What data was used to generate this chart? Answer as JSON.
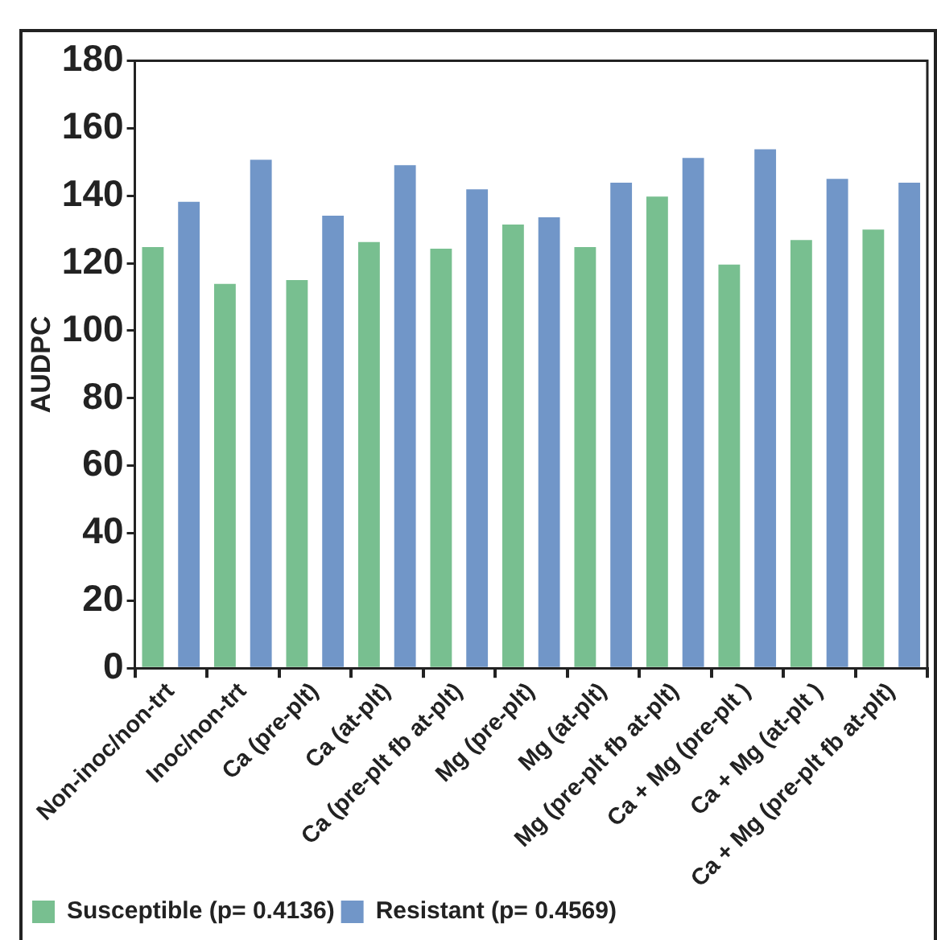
{
  "chart_data": {
    "type": "bar",
    "ylabel": "AUDPC",
    "categories": [
      "Non-inoc/non-trt",
      "Inoc/non-trt",
      "Ca (pre-plt)",
      "Ca (at-plt)",
      "Ca (pre-plt fb at-plt)",
      "Mg (pre-plt)",
      "Mg (at-plt)",
      "Mg (pre-plt fb at-plt)",
      "Ca + Mg (pre-plt )",
      "Ca + Mg (at-plt )",
      "Ca + Mg (pre-plt fb at-plt)"
    ],
    "series": [
      {
        "name": "Susceptible (p= 0.4136)",
        "color": "#78bf90",
        "values": [
          124.8,
          113.9,
          115,
          126.3,
          124.3,
          131.5,
          124.8,
          139.8,
          119.6,
          126.9,
          130
        ]
      },
      {
        "name": "Resistant (p= 0.4569)",
        "color": "#7196c8",
        "values": [
          138.2,
          150.7,
          134.1,
          149.1,
          141.9,
          133.6,
          143.9,
          151.2,
          153.8,
          145,
          143.9
        ]
      }
    ],
    "ylim": [
      0,
      180
    ],
    "yticks": [
      0,
      20,
      40,
      60,
      80,
      100,
      120,
      140,
      160,
      180
    ],
    "grid": false,
    "legend": "bottom left"
  }
}
